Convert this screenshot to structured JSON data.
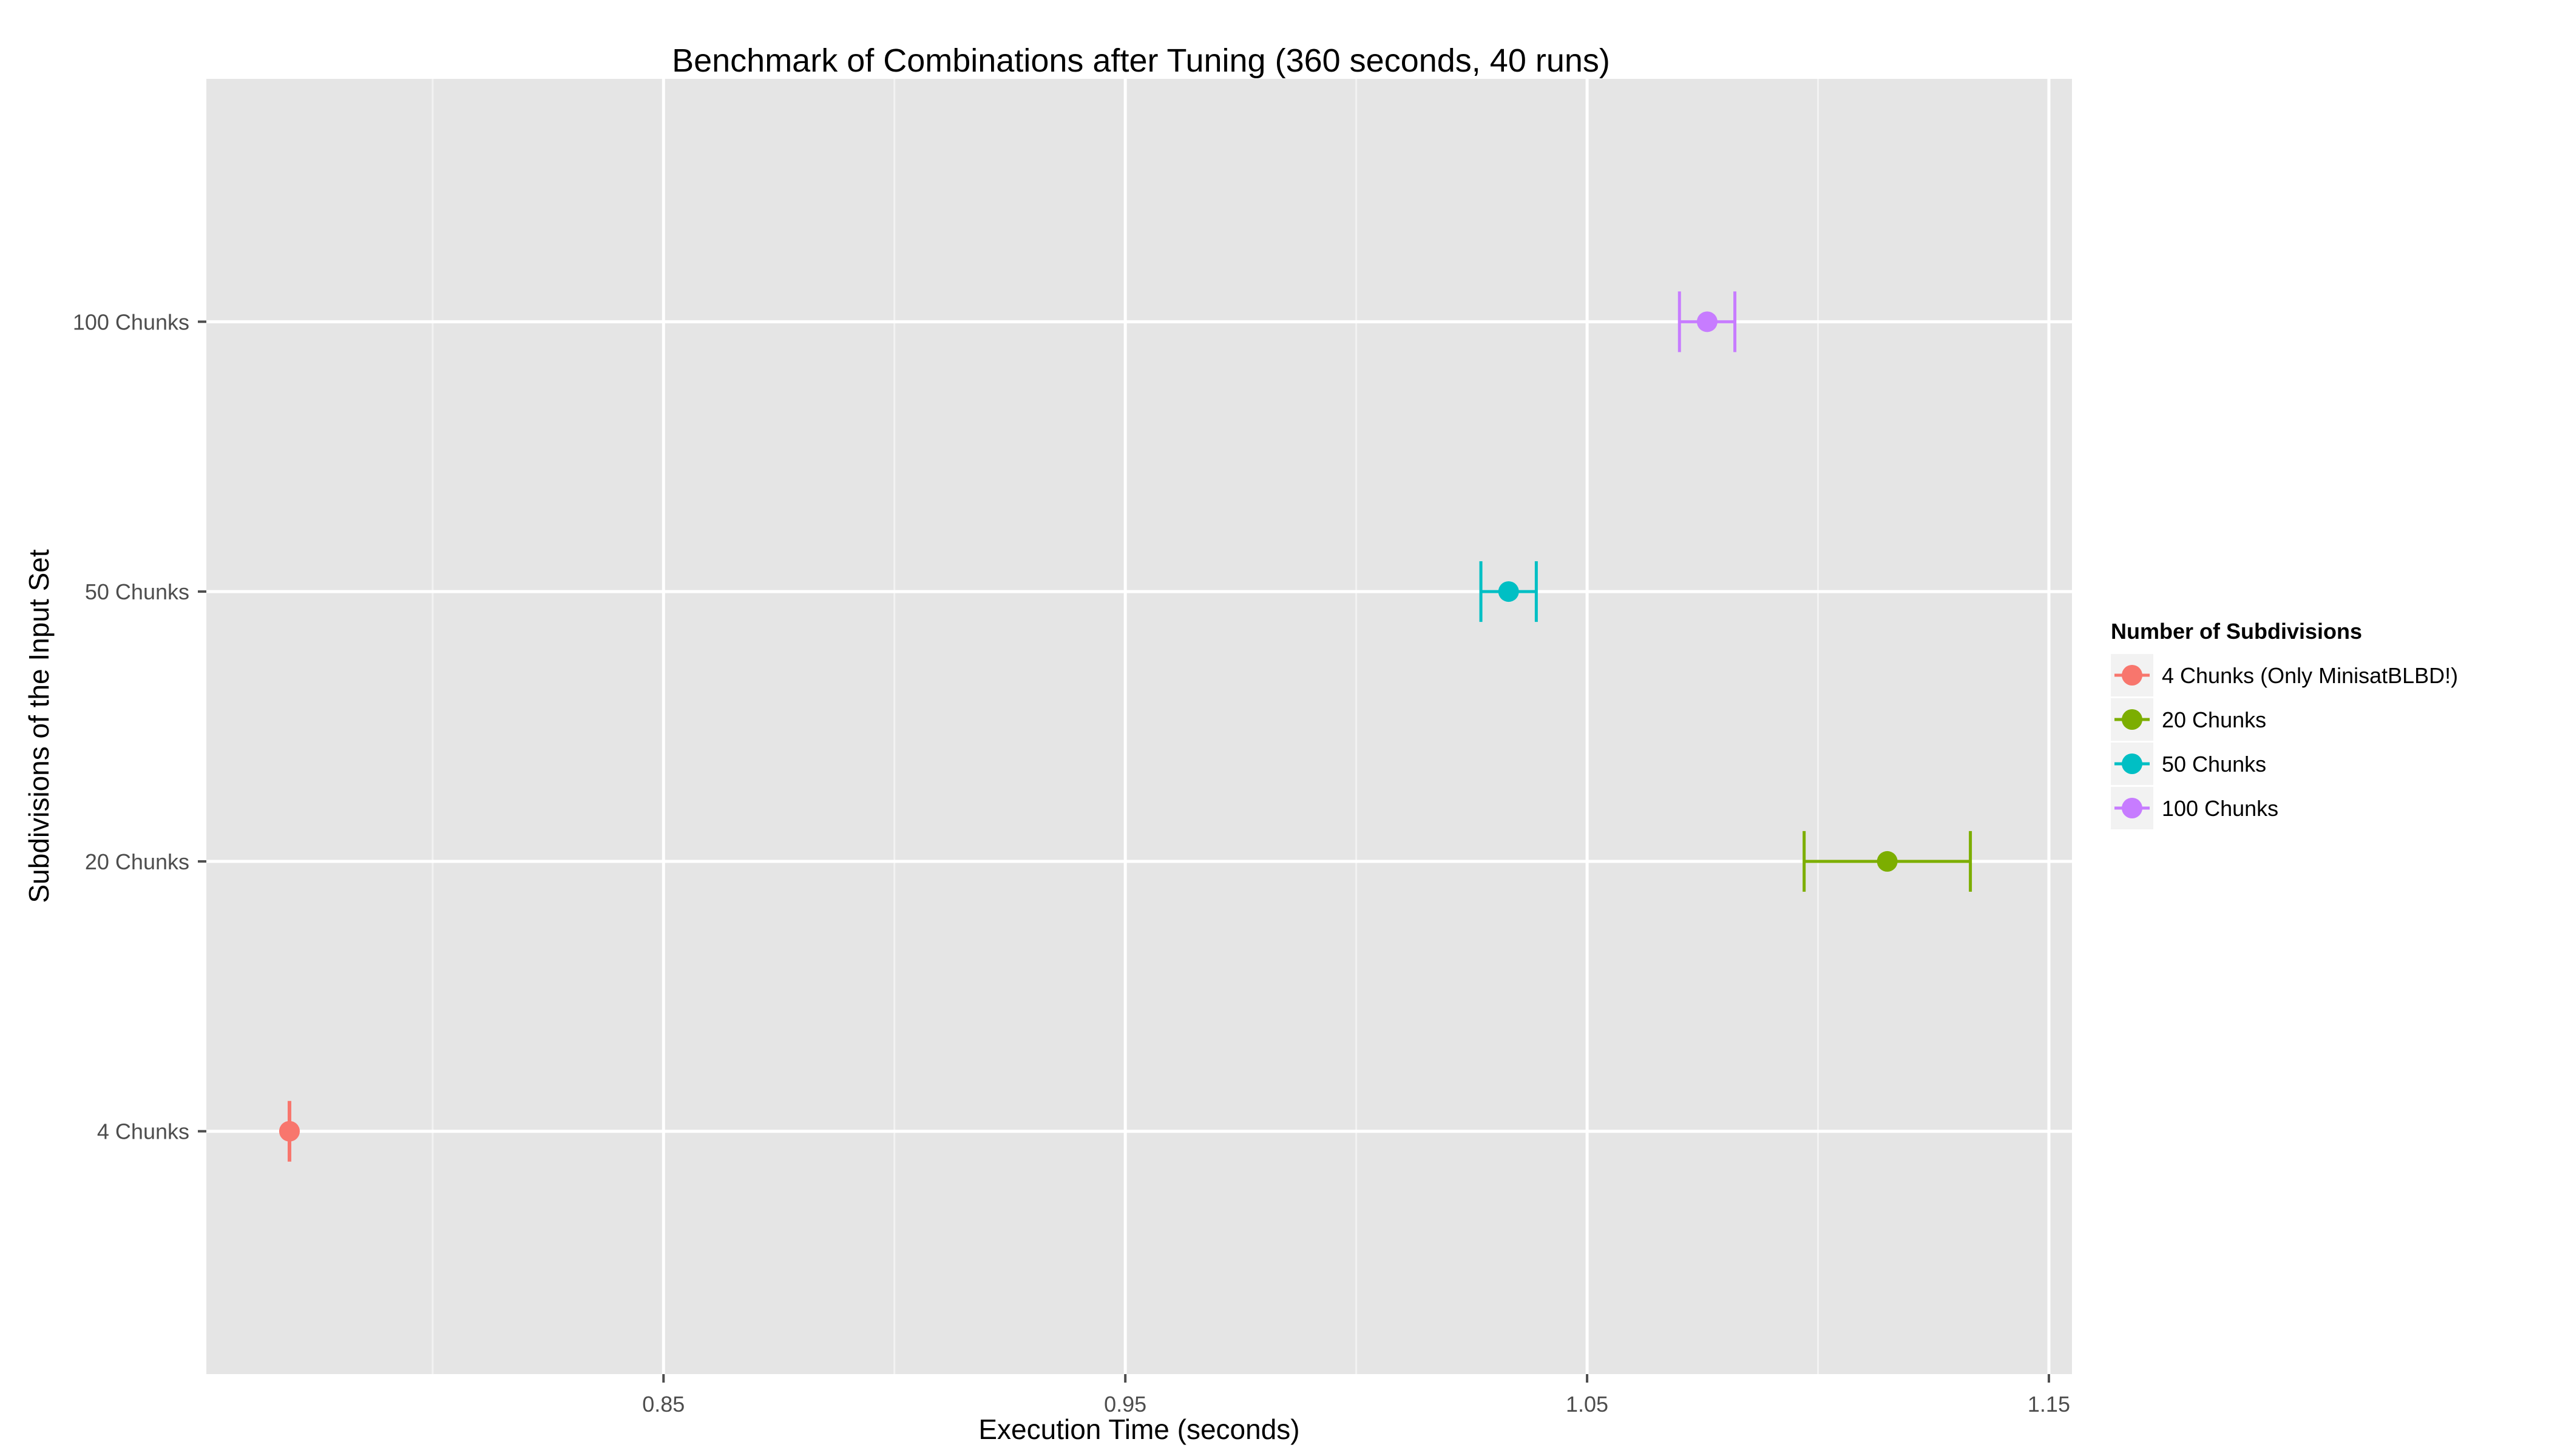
{
  "chart_data": {
    "type": "scatter",
    "title": "Benchmark of Combinations after Tuning (360 seconds, 40 runs)",
    "xlabel": "Execution Time (seconds)",
    "ylabel": "Subdivisions of the Input Set",
    "xlim": [
      0.751,
      1.155
    ],
    "x_ticks": [
      0.85,
      0.95,
      1.05,
      1.15
    ],
    "x_tick_labels": [
      "0.85",
      "0.95",
      "1.05",
      "1.15"
    ],
    "categories": [
      "4 Chunks",
      "20 Chunks",
      "50 Chunks",
      "100 Chunks"
    ],
    "grid": true,
    "legend": {
      "title": "Number of Subdivisions",
      "position": "right"
    },
    "series": [
      {
        "name": "4 Chunks (Only MinisatBLBD!)",
        "category": "4 Chunks",
        "x": 0.769,
        "x_low": 0.769,
        "x_high": 0.769,
        "color": "#F8766D"
      },
      {
        "name": "20 Chunks",
        "category": "20 Chunks",
        "x": 1.115,
        "x_low": 1.097,
        "x_high": 1.133,
        "color": "#7CAE00"
      },
      {
        "name": "50 Chunks",
        "category": "50 Chunks",
        "x": 1.033,
        "x_low": 1.027,
        "x_high": 1.039,
        "color": "#00BFC4"
      },
      {
        "name": "100 Chunks",
        "category": "100 Chunks",
        "x": 1.076,
        "x_low": 1.07,
        "x_high": 1.082,
        "color": "#C77CFF"
      }
    ]
  }
}
